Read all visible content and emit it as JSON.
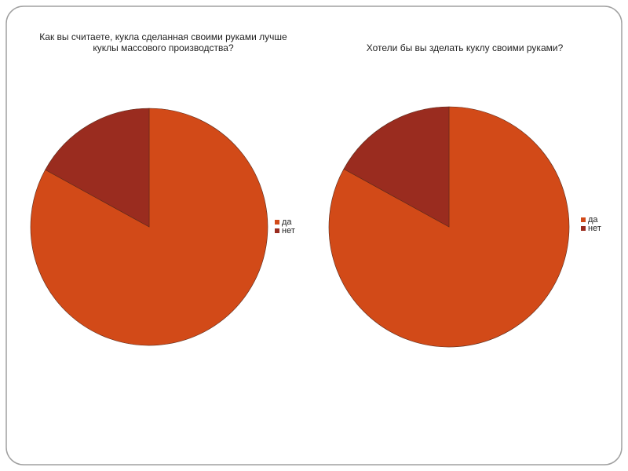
{
  "chart_data": [
    {
      "type": "pie",
      "title": "Как вы считаете, кукла сделанная своими руками лучше куклы массового производства?",
      "categories": [
        "да",
        "нет"
      ],
      "values": [
        83,
        17
      ],
      "colors": [
        "#d24a18",
        "#9a2c1f"
      ],
      "legend": "right"
    },
    {
      "type": "pie",
      "title": "Хотели бы вы зделать куклу своими руками?",
      "categories": [
        "да",
        "нет"
      ],
      "values": [
        83,
        17
      ],
      "colors": [
        "#d24a18",
        "#9a2c1f"
      ],
      "legend": "right"
    }
  ]
}
